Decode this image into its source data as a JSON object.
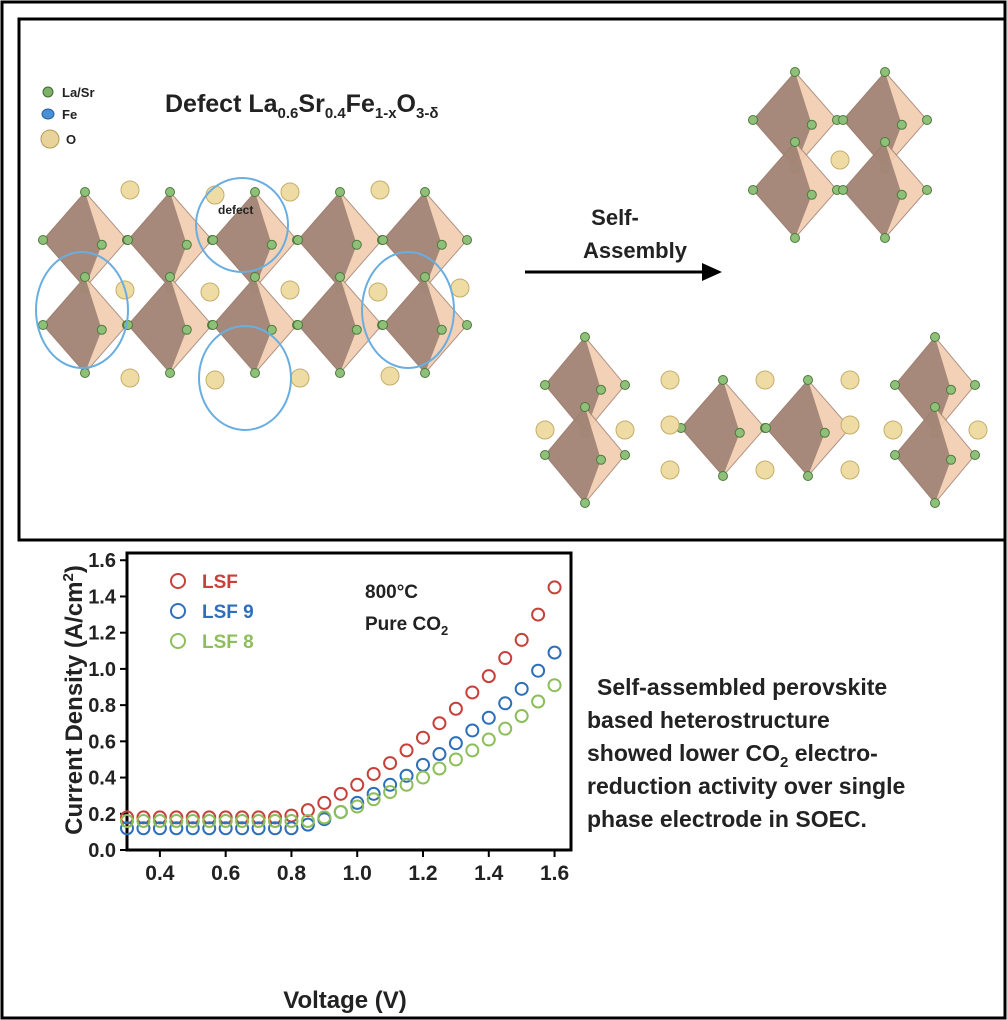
{
  "diagram": {
    "title_parts": [
      "Defect La",
      "0.6",
      "Sr",
      "0.4",
      "Fe",
      "1-x",
      "O",
      "3-δ"
    ],
    "legend": [
      "La/Sr",
      "Fe",
      "O"
    ],
    "defect_label": "defect",
    "arrow_label": [
      "Self-",
      "Assembly"
    ]
  },
  "caption": {
    "line1": "Self-assembled perovskite",
    "line2": "based heterostructure",
    "line3_a": "showed lower  CO",
    "line3_sub": "2",
    "line3_b": " electro-",
    "line4": "reduction activity over single",
    "line5": "phase electrode in SOEC."
  },
  "chart_data": {
    "type": "scatter",
    "x_label": "Voltage (V)",
    "y_label": {
      "text": "Current Density (A/cm",
      "sup": "2",
      "end": ")"
    },
    "annotations": {
      "temp": "800°C",
      "gas": "Pure CO",
      "gas_sub": "2"
    },
    "x": [
      0.3,
      0.35,
      0.4,
      0.45,
      0.5,
      0.55,
      0.6,
      0.65,
      0.7,
      0.75,
      0.8,
      0.85,
      0.9,
      0.95,
      1.0,
      1.05,
      1.1,
      1.15,
      1.2,
      1.25,
      1.3,
      1.35,
      1.4,
      1.45,
      1.5,
      1.55,
      1.6
    ],
    "series": [
      {
        "name": "LSF",
        "color": "#c8403a",
        "values": [
          0.18,
          0.18,
          0.18,
          0.18,
          0.18,
          0.18,
          0.18,
          0.18,
          0.18,
          0.18,
          0.19,
          0.22,
          0.26,
          0.31,
          0.36,
          0.42,
          0.48,
          0.55,
          0.62,
          0.7,
          0.78,
          0.87,
          0.96,
          1.06,
          1.16,
          1.3,
          1.45
        ]
      },
      {
        "name": "LSF 9",
        "color": "#2f6fba",
        "values": [
          0.12,
          0.12,
          0.12,
          0.12,
          0.12,
          0.12,
          0.12,
          0.12,
          0.12,
          0.12,
          0.12,
          0.14,
          0.17,
          0.21,
          0.26,
          0.31,
          0.36,
          0.41,
          0.47,
          0.53,
          0.59,
          0.66,
          0.73,
          0.81,
          0.89,
          0.99,
          1.09
        ]
      },
      {
        "name": "LSF 8",
        "color": "#8cbf5a",
        "values": [
          0.16,
          0.16,
          0.16,
          0.16,
          0.16,
          0.16,
          0.16,
          0.16,
          0.16,
          0.16,
          0.16,
          0.16,
          0.18,
          0.21,
          0.24,
          0.28,
          0.32,
          0.36,
          0.4,
          0.45,
          0.5,
          0.55,
          0.61,
          0.67,
          0.74,
          0.82,
          0.91
        ]
      }
    ],
    "xlim": [
      0.3,
      1.65
    ],
    "ylim": [
      0,
      1.64
    ],
    "xticks": [
      0.4,
      0.6,
      0.8,
      {
        "value": 1.0,
        "label": "1.0"
      },
      1.2,
      1.4,
      1.6
    ],
    "yticks": [
      {
        "value": 0,
        "label": "0.0"
      },
      0.2,
      0.4,
      0.6,
      0.8,
      {
        "value": 1.0,
        "label": "1.0"
      },
      1.2,
      1.4,
      1.6
    ]
  }
}
